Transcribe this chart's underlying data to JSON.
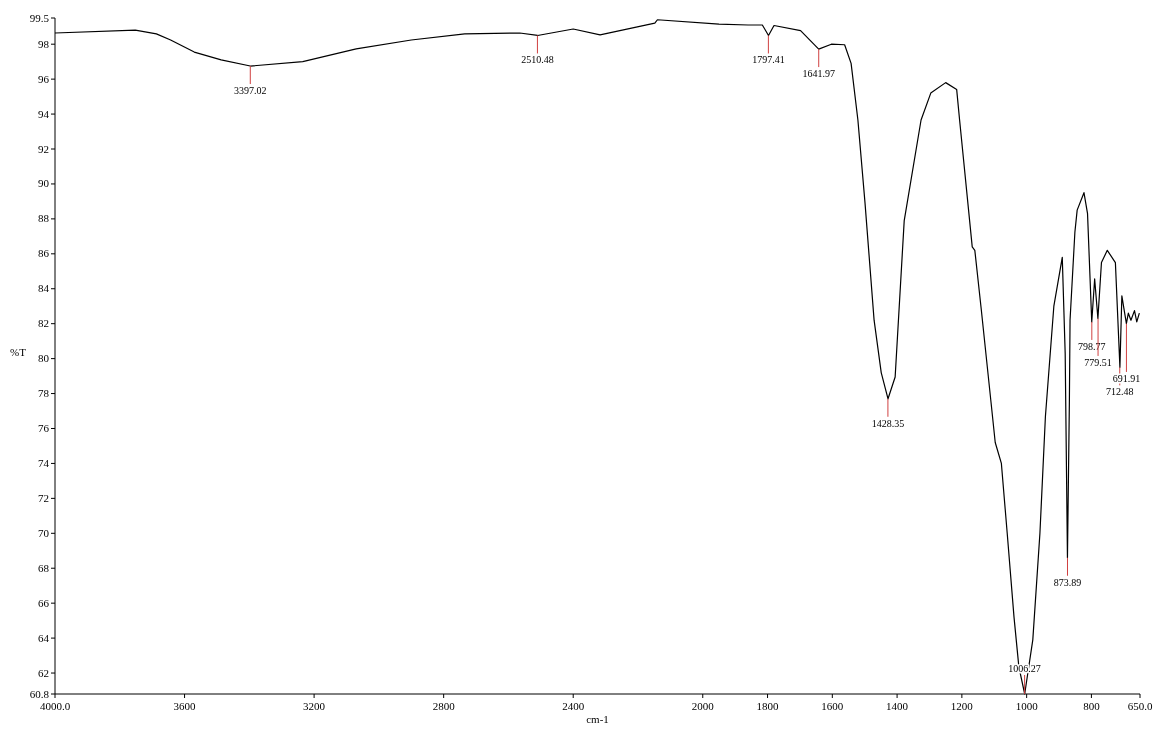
{
  "chart_data": {
    "type": "line",
    "xlabel": "cm-1",
    "ylabel": "%T",
    "xlim": [
      4000,
      650
    ],
    "ylim": [
      60.8,
      99.5
    ],
    "xticks": [
      {
        "value": 4000,
        "label": "4000.0"
      },
      3600,
      3200,
      2800,
      2400,
      2000,
      1800,
      1600,
      1400,
      1200,
      1000,
      800,
      {
        "value": 650,
        "label": "650.0"
      }
    ],
    "yticks": [
      60.8,
      62,
      64,
      66,
      68,
      70,
      72,
      74,
      76,
      78,
      80,
      82,
      84,
      86,
      88,
      90,
      92,
      94,
      96,
      98,
      99.5
    ],
    "series": [
      {
        "color": "#000000",
        "x": [
          4000,
          3752,
          3687,
          3643,
          3570,
          3487,
          3397,
          3235,
          3070,
          2900,
          2735,
          2565,
          2510,
          2400,
          2317,
          2148,
          2140,
          1950,
          1860,
          1816,
          1797,
          1780,
          1698,
          1642,
          1603,
          1562,
          1542,
          1521,
          1499,
          1471,
          1449,
          1428,
          1406,
          1378,
          1326,
          1296,
          1250,
          1216,
          1207,
          1168,
          1160,
          1140,
          1110,
          1097,
          1078,
          1060,
          1039,
          1024,
          1006,
          981,
          959,
          942,
          916,
          890,
          881,
          874,
          868,
          866,
          851,
          844,
          823,
          812,
          799,
          790,
          780,
          769,
          751,
          726,
          712,
          706,
          700,
          692,
          686,
          678,
          667,
          660,
          652
        ],
        "values": [
          98.64,
          98.81,
          98.59,
          98.24,
          97.55,
          97.1,
          96.75,
          97.0,
          97.73,
          98.24,
          98.59,
          98.64,
          98.5,
          98.87,
          98.53,
          99.21,
          99.4,
          99.15,
          99.1,
          99.1,
          98.5,
          99.07,
          98.78,
          97.72,
          98.0,
          97.97,
          96.9,
          93.66,
          88.9,
          82.2,
          79.2,
          77.7,
          78.95,
          87.9,
          93.66,
          95.2,
          95.8,
          95.4,
          93.66,
          86.4,
          86.2,
          82.8,
          77.5,
          75.2,
          74.0,
          70.0,
          65.2,
          62.35,
          60.8,
          63.9,
          70.0,
          76.7,
          83.0,
          85.8,
          80.3,
          68.6,
          77.6,
          82.2,
          87.25,
          88.5,
          89.5,
          88.3,
          82.1,
          84.56,
          82.3,
          85.5,
          86.2,
          85.5,
          79.5,
          83.6,
          82.9,
          82.0,
          82.6,
          82.2,
          82.75,
          82.1,
          82.6
        ]
      }
    ],
    "annotations": [
      {
        "text": "3397.02",
        "x": 3397.02,
        "y": 96.75
      },
      {
        "text": "2510.48",
        "x": 2510.48,
        "y": 98.5
      },
      {
        "text": "1797.41",
        "x": 1797.41,
        "y": 98.5
      },
      {
        "text": "1641.97",
        "x": 1641.97,
        "y": 97.72
      },
      {
        "text": "1428.35",
        "x": 1428.35,
        "y": 77.7
      },
      {
        "text": "1006.27",
        "x": 1006.27,
        "y": 60.8
      },
      {
        "text": "873.89",
        "x": 873.89,
        "y": 68.6
      },
      {
        "text": "798.77",
        "x": 798.77,
        "y": 82.1
      },
      {
        "text": "779.51",
        "x": 779.51,
        "y": 82.3
      },
      {
        "text": "712.48",
        "x": 712.48,
        "y": 79.5
      },
      {
        "text": "691.91",
        "x": 691.91,
        "y": 82.0
      }
    ]
  }
}
